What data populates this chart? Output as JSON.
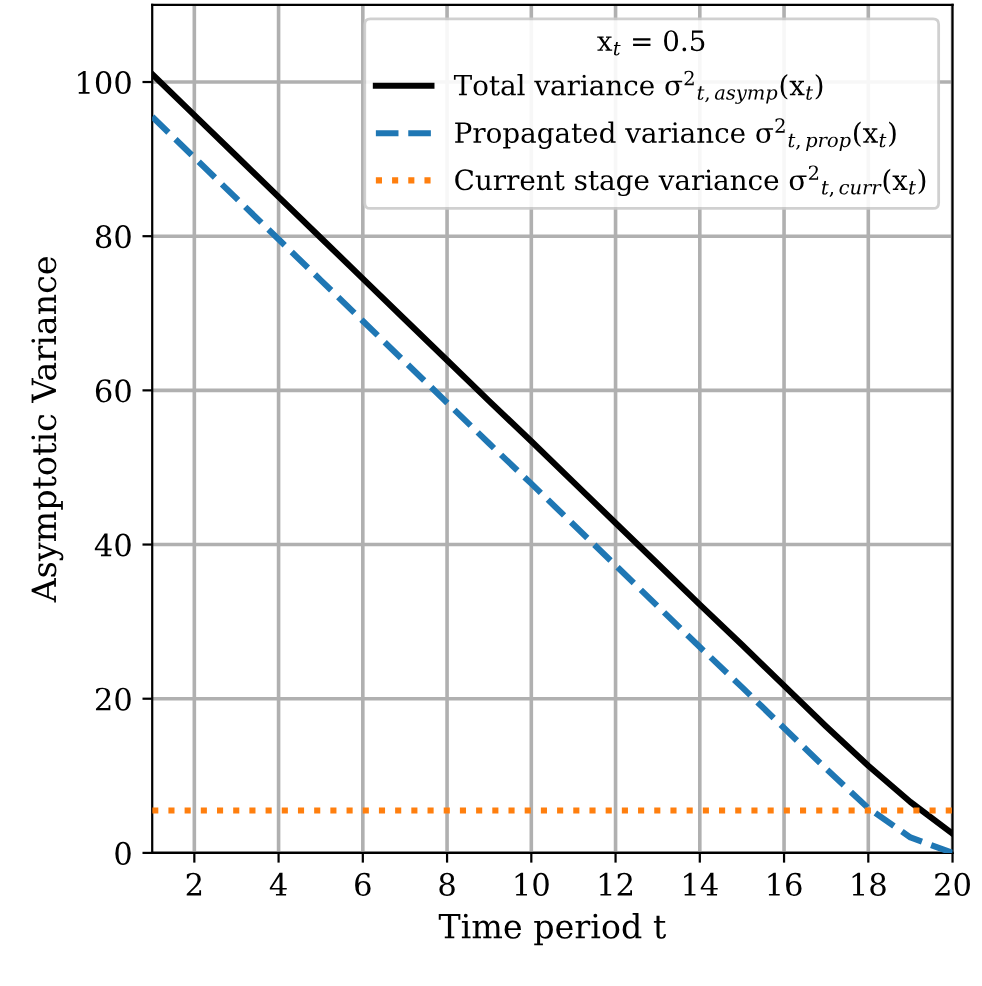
{
  "chart_data": {
    "type": "line",
    "xlabel": "Time period t",
    "ylabel": "Asymptotic Variance",
    "legend_title": "x$_{t}$ = 0.5",
    "x": [
      1,
      2,
      3,
      4,
      5,
      6,
      7,
      8,
      9,
      10,
      11,
      12,
      13,
      14,
      15,
      16,
      17,
      18,
      19,
      20
    ],
    "series": [
      {
        "name": "Total variance σ$^{2}$$_{t,asymp}$(x$_{t}$)",
        "color": "#000000",
        "line_style": "solid",
        "values": [
          101,
          95.7,
          90.4,
          85.1,
          79.8,
          74.5,
          69.2,
          63.9,
          58.6,
          53.4,
          48.1,
          42.8,
          37.5,
          32.2,
          27.0,
          21.7,
          16.4,
          11.3,
          6.6,
          2.5
        ]
      },
      {
        "name": "Propagated variance σ$^{2}$$_{t,prop}$(x$_{t}$)",
        "color": "#1f77b4",
        "line_style": "dashed",
        "values": [
          95.5,
          90.2,
          84.9,
          79.6,
          74.3,
          69.0,
          63.7,
          58.4,
          53.1,
          47.9,
          42.6,
          37.3,
          32.0,
          26.7,
          21.5,
          16.2,
          10.9,
          5.8,
          2.0,
          0.0
        ]
      },
      {
        "name": "Current stage variance σ$^{2}$$_{t,curr}$(x$_{t}$)",
        "color": "#ff7f0e",
        "line_style": "dotted",
        "values": [
          5.5,
          5.5,
          5.5,
          5.5,
          5.5,
          5.5,
          5.5,
          5.5,
          5.5,
          5.5,
          5.5,
          5.5,
          5.5,
          5.5,
          5.5,
          5.5,
          5.5,
          5.5,
          5.5,
          5.5
        ]
      }
    ],
    "xlim": [
      1,
      20
    ],
    "xticks": [
      2,
      4,
      6,
      8,
      10,
      12,
      14,
      16,
      18,
      20
    ],
    "ylim": [
      0,
      110
    ],
    "yticks": [
      0,
      20,
      40,
      60,
      80,
      100
    ],
    "grid": true,
    "legend": "top right",
    "marker": "none"
  }
}
